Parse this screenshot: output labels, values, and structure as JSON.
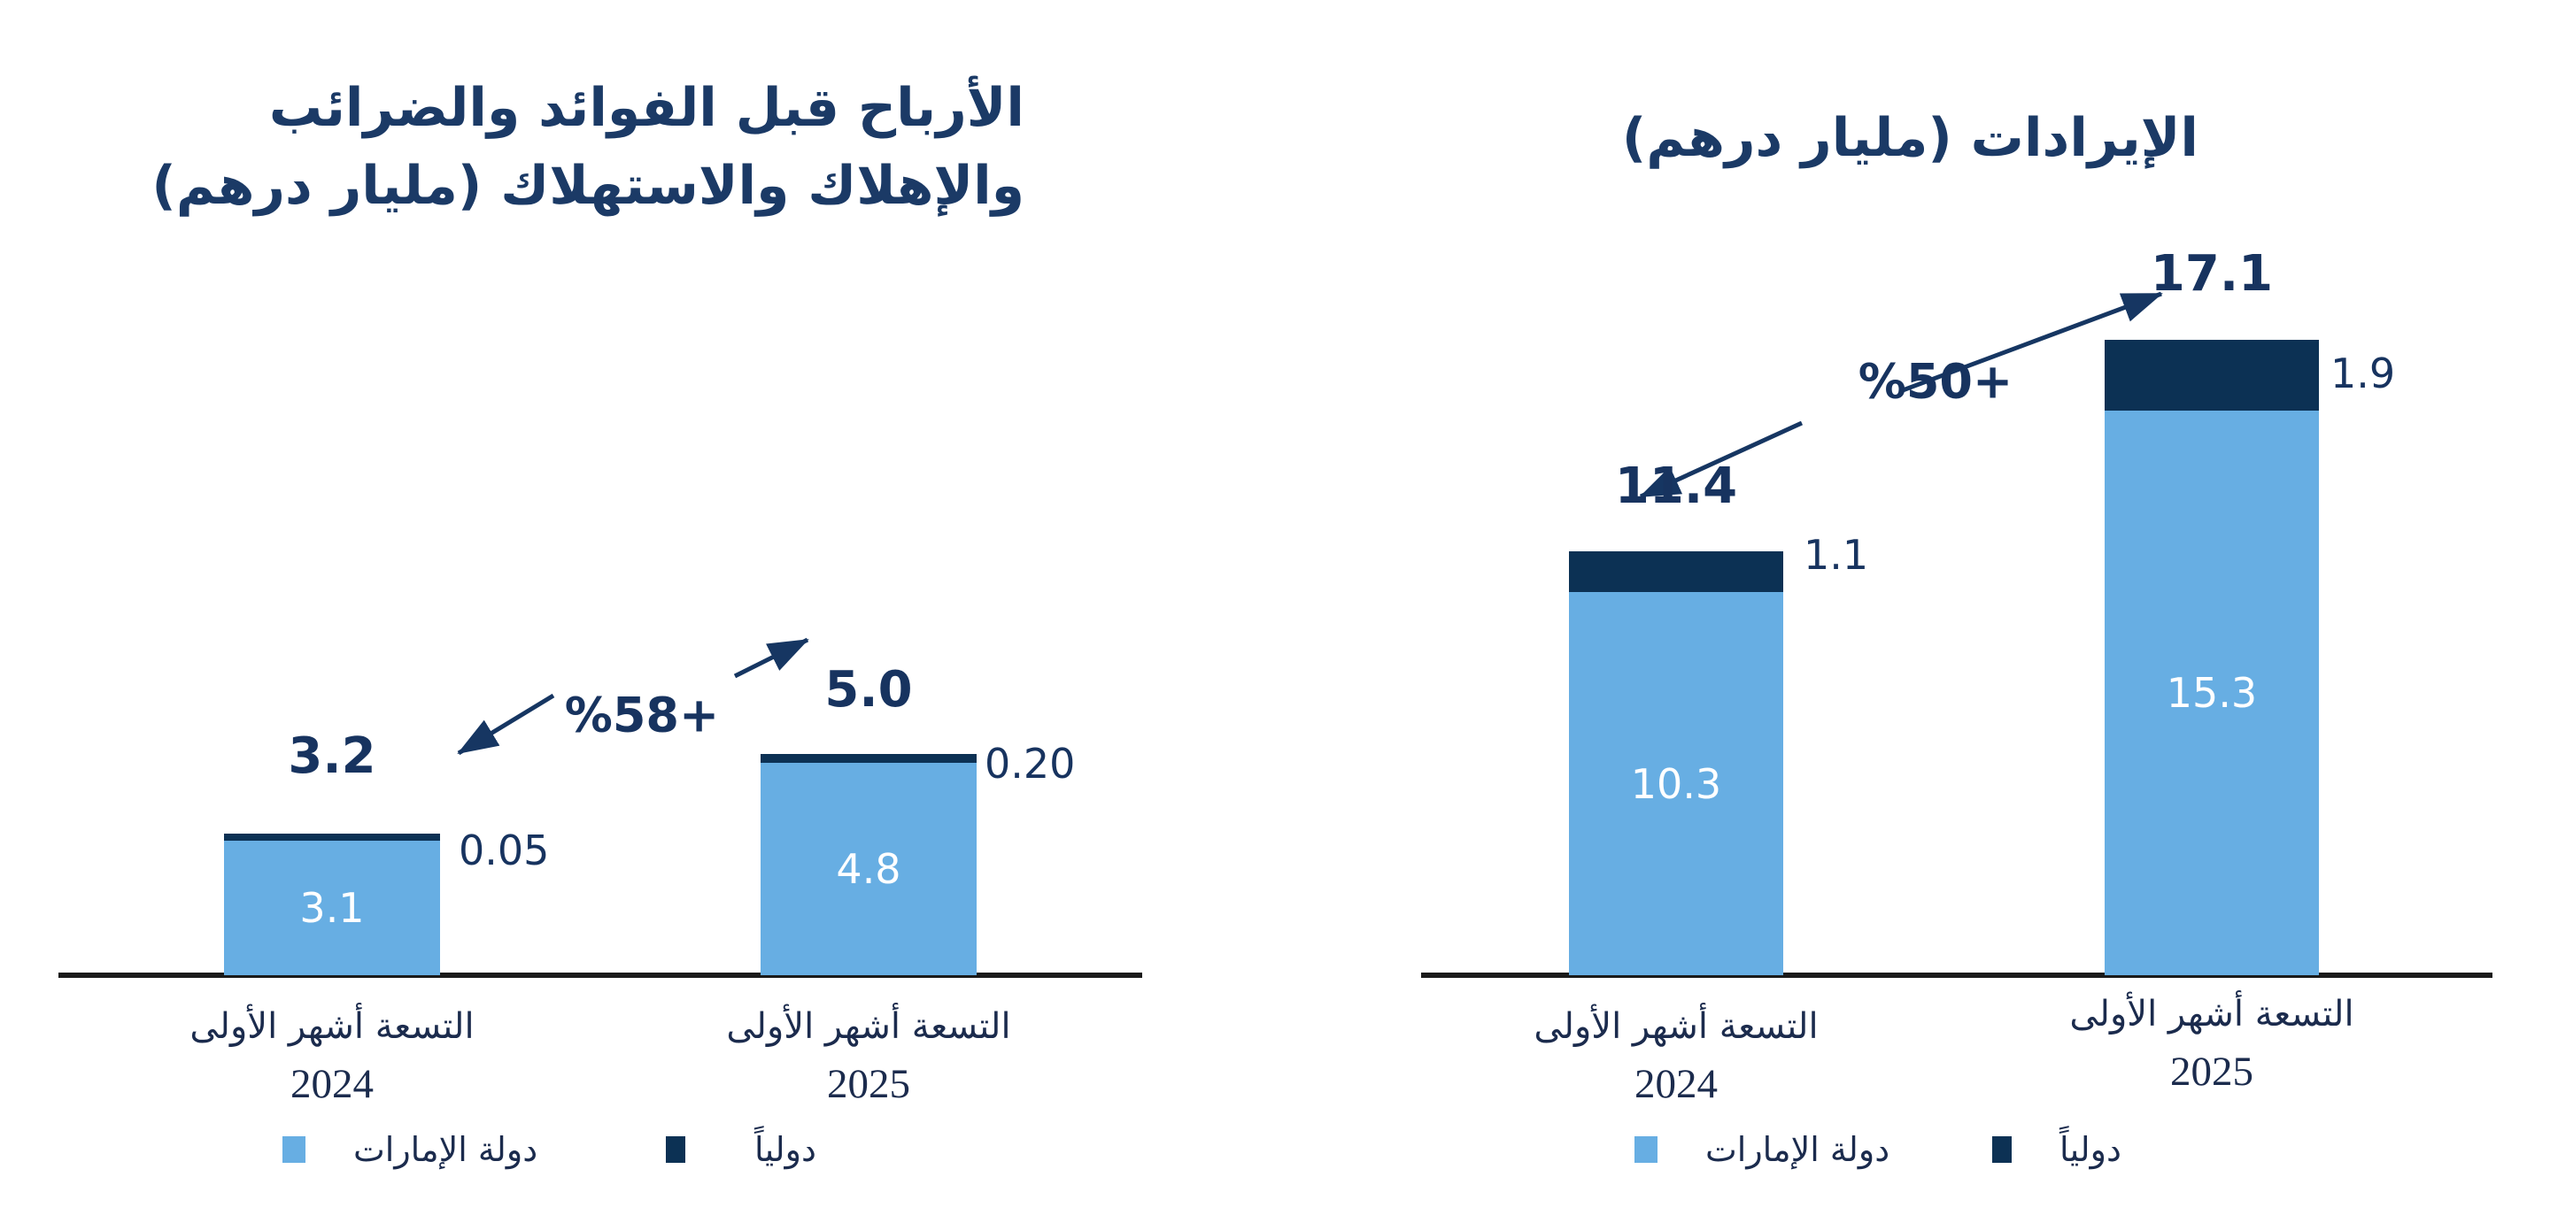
{
  "colors": {
    "uae": "#67AEE3",
    "intl": "#0C3154",
    "title": "#1B3A66",
    "value": "#17335F",
    "tick": "#1B2B4D",
    "axis": "#1A1A1A",
    "onbar": "#FFFFFF",
    "arrow": "#163662"
  },
  "chart_data": [
    {
      "type": "bar",
      "stacked": true,
      "direction": "rtl",
      "grid": false,
      "legend_position": "bottom",
      "title": "الأرباح قبل الفوائد والضرائب والإهلاك والاستهلاك (مليار درهم)",
      "title_lines": [
        "الأرباح قبل الفوائد والضرائب",
        "والإهلاك والاستهلاك (مليار درهم)"
      ],
      "growth_label": "%58+",
      "category_label": "التسعة أشهر الأولى",
      "years": [
        "2024",
        "2025"
      ],
      "categories": [
        "التسعة أشهر الأولى 2024",
        "التسعة أشهر الأولى 2025"
      ],
      "series": [
        {
          "name": "دولة الإمارات",
          "values": [
            3.1,
            4.8
          ],
          "color": "#67AEE3"
        },
        {
          "name": "دولياً",
          "values": [
            0.05,
            0.2
          ],
          "color": "#0C3154"
        }
      ],
      "totals": [
        3.2,
        5.0
      ],
      "total_labels": [
        "3.2",
        "5.0"
      ],
      "segment_labels": {
        "uae": [
          "3.1",
          "4.8"
        ],
        "intl": [
          "0.05",
          "0.20"
        ]
      },
      "ylim": [
        0,
        5.0
      ]
    },
    {
      "type": "bar",
      "stacked": true,
      "direction": "rtl",
      "grid": false,
      "legend_position": "bottom",
      "title": "الإيرادات (مليار درهم)",
      "title_lines": [
        "الإيرادات (مليار درهم)"
      ],
      "growth_label": "%50+",
      "category_label": "التسعة أشهر الأولى",
      "years": [
        "2024",
        "2025"
      ],
      "categories": [
        "التسعة أشهر الأولى 2024",
        "التسعة أشهر الأولى 2025"
      ],
      "series": [
        {
          "name": "دولة الإمارات",
          "values": [
            10.3,
            15.3
          ],
          "color": "#67AEE3"
        },
        {
          "name": "دولياً",
          "values": [
            1.1,
            1.9
          ],
          "color": "#0C3154"
        }
      ],
      "totals": [
        11.4,
        17.1
      ],
      "total_labels": [
        "11.4",
        "17.1"
      ],
      "segment_labels": {
        "uae": [
          "10.3",
          "15.3"
        ],
        "intl": [
          "1.1",
          "1.9"
        ]
      },
      "ylim": [
        0,
        17.5
      ]
    }
  ]
}
